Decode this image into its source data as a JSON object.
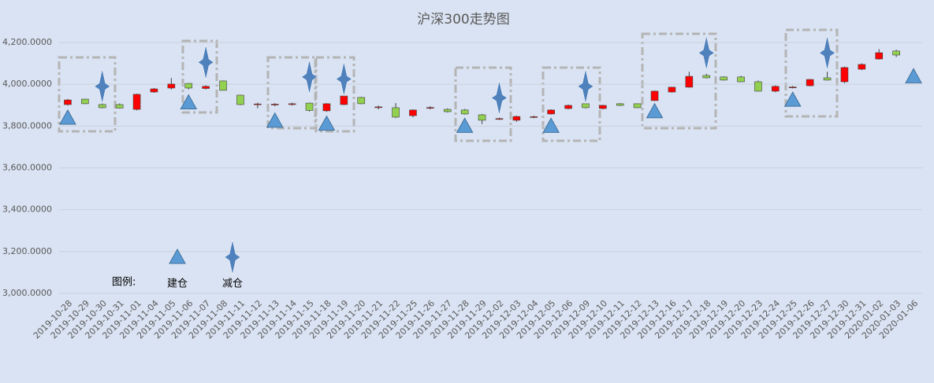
{
  "chart_data": {
    "type": "candlestick",
    "title": "沪深300走势图",
    "categories": [
      "2019-10-28",
      "2019-10-29",
      "2019-10-30",
      "2019-10-31",
      "2019-11-01",
      "2019-11-04",
      "2019-11-05",
      "2019-11-06",
      "2019-11-07",
      "2019-11-08",
      "2019-11-11",
      "2019-11-12",
      "2019-11-13",
      "2019-11-14",
      "2019-11-15",
      "2019-11-18",
      "2019-11-19",
      "2019-11-20",
      "2019-11-21",
      "2019-11-22",
      "2019-11-25",
      "2019-11-26",
      "2019-11-27",
      "2019-11-28",
      "2019-11-29",
      "2019-12-02",
      "2019-12-03",
      "2019-12-04",
      "2019-12-05",
      "2019-12-06",
      "2019-12-09",
      "2019-12-10",
      "2019-12-11",
      "2019-12-12",
      "2019-12-13",
      "2019-12-16",
      "2019-12-17",
      "2019-12-18",
      "2019-12-19",
      "2019-12-20",
      "2019-12-23",
      "2019-12-24",
      "2019-12-25",
      "2019-12-26",
      "2019-12-27",
      "2019-12-30",
      "2019-12-31",
      "2020-01-02",
      "2020-01-03",
      "2020-01-06"
    ],
    "open": [
      3903,
      3929,
      3903,
      3903,
      3880,
      3963,
      3982,
      4004,
      3980,
      4016,
      3948,
      3903,
      3903,
      3905,
      3910,
      3873,
      3903,
      3937,
      3890,
      3888,
      3850,
      3887,
      3880,
      3877,
      3854,
      3834,
      3828,
      3842,
      3858,
      3884,
      3907,
      3884,
      3907,
      3907,
      3922,
      3963,
      3986,
      4042,
      4035,
      4035,
      4012,
      3967,
      3985,
      3993,
      4031,
      4012,
      4072,
      4121,
      4159,
      null
    ],
    "high": [
      3930,
      3930,
      3910,
      3908,
      3955,
      3982,
      4030,
      4006,
      3995,
      4018,
      3950,
      3912,
      3910,
      3912,
      3912,
      3910,
      3948,
      3940,
      3898,
      3910,
      3880,
      3895,
      3885,
      3882,
      3858,
      3840,
      3850,
      3850,
      3880,
      3903,
      3910,
      3902,
      3910,
      3908,
      3970,
      3988,
      4060,
      4050,
      4038,
      4040,
      4018,
      3995,
      3992,
      4025,
      4060,
      4085,
      4100,
      4168,
      4165,
      null
    ],
    "low": [
      3898,
      3905,
      3885,
      3884,
      3875,
      3960,
      3975,
      3975,
      3975,
      3970,
      3900,
      3885,
      3895,
      3898,
      3870,
      3868,
      3900,
      3905,
      3880,
      3838,
      3842,
      3880,
      3865,
      3855,
      3810,
      3830,
      3820,
      3838,
      3855,
      3880,
      3885,
      3880,
      3896,
      3886,
      3920,
      3960,
      3984,
      4028,
      4018,
      4010,
      3965,
      3962,
      3980,
      3990,
      4018,
      4005,
      4068,
      4118,
      4130,
      null
    ],
    "close": [
      3925,
      3907,
      3888,
      3886,
      3952,
      3978,
      4001,
      3982,
      3990,
      3971,
      3903,
      3906,
      3905,
      3907,
      3875,
      3907,
      3944,
      3907,
      3892,
      3843,
      3877,
      3889,
      3869,
      3858,
      3828,
      3836,
      3846,
      3845,
      3877,
      3899,
      3888,
      3899,
      3899,
      3888,
      3967,
      3986,
      4038,
      4031,
      4020,
      4012,
      3967,
      3990,
      3987,
      4023,
      4020,
      4080,
      4095,
      4151,
      4140,
      null
    ],
    "up_color": "#ff0000",
    "down_color": "#92d050",
    "ylim": [
      3000,
      4200
    ],
    "yticks": [
      {
        "value": 3000,
        "label": "3,000.0000"
      },
      {
        "value": 3200,
        "label": "3,200.0000"
      },
      {
        "value": 3400,
        "label": "3,400.0000"
      },
      {
        "value": 3600,
        "label": "3,600.0000"
      },
      {
        "value": 3800,
        "label": "3,800.0000"
      },
      {
        "value": 4000,
        "label": "4,000.0000"
      },
      {
        "value": 4200,
        "label": "4,200.0000"
      }
    ],
    "grid": true,
    "legend_title": "图例:",
    "markers": [
      {
        "name": "建仓",
        "shape": "triangle",
        "color": "#5b9bd5",
        "values": [
          3839,
          null,
          null,
          null,
          null,
          null,
          null,
          3912,
          null,
          null,
          null,
          null,
          3825,
          null,
          null,
          3810,
          null,
          null,
          null,
          null,
          null,
          null,
          null,
          3800,
          null,
          null,
          null,
          null,
          3800,
          null,
          null,
          null,
          null,
          null,
          3870,
          null,
          null,
          null,
          null,
          null,
          null,
          null,
          3925,
          null,
          null,
          null,
          null,
          null,
          null,
          4037
        ]
      },
      {
        "name": "减仓",
        "shape": "star",
        "color": "#4f81bd",
        "values": [
          null,
          null,
          3990,
          null,
          null,
          null,
          null,
          null,
          4105,
          null,
          null,
          null,
          null,
          null,
          4035,
          null,
          4025,
          null,
          null,
          null,
          null,
          null,
          null,
          null,
          null,
          3935,
          null,
          null,
          null,
          null,
          3990,
          null,
          null,
          null,
          null,
          null,
          null,
          4150,
          null,
          null,
          null,
          null,
          null,
          null,
          4150,
          null,
          null,
          null,
          null,
          null
        ]
      }
    ]
  }
}
